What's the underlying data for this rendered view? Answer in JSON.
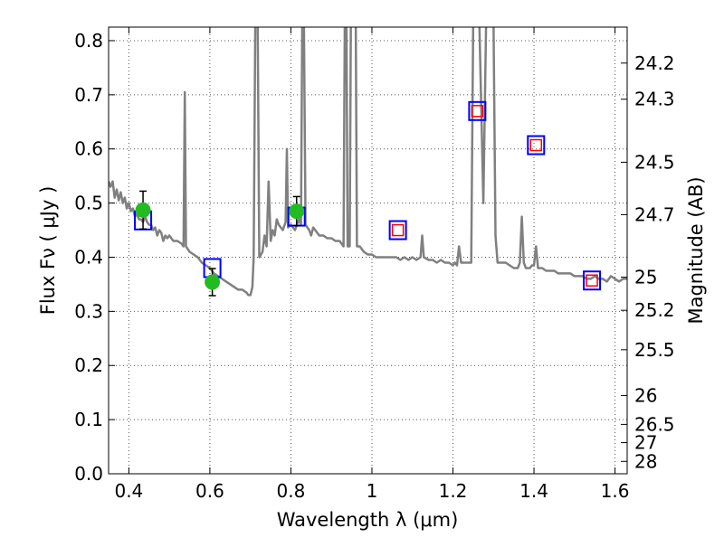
{
  "chart_data": {
    "type": "scatter",
    "xlabel": "Wavelength  λ (μm)",
    "ylabel_left": "Flux  Fν  ( μJy )",
    "ylabel_right": "Magnitude (AB)",
    "xlim": [
      0.35,
      1.63
    ],
    "ylim": [
      0.0,
      0.825
    ],
    "grid": true,
    "x_ticks": [
      {
        "value": 0.4,
        "label": "0.4"
      },
      {
        "value": 0.6,
        "label": "0.6"
      },
      {
        "value": 0.8,
        "label": "0.8"
      },
      {
        "value": 1.0,
        "label": "1"
      },
      {
        "value": 1.2,
        "label": "1.2"
      },
      {
        "value": 1.4,
        "label": "1.4"
      },
      {
        "value": 1.6,
        "label": "1.6"
      }
    ],
    "y_ticks": [
      {
        "value": 0.0,
        "label": "0.0"
      },
      {
        "value": 0.1,
        "label": "0.1"
      },
      {
        "value": 0.2,
        "label": "0.2"
      },
      {
        "value": 0.3,
        "label": "0.3"
      },
      {
        "value": 0.4,
        "label": "0.4"
      },
      {
        "value": 0.5,
        "label": "0.5"
      },
      {
        "value": 0.6,
        "label": "0.6"
      },
      {
        "value": 0.7,
        "label": "0.7"
      },
      {
        "value": 0.8,
        "label": "0.8"
      }
    ],
    "right_ticks": [
      {
        "mag": 24.2,
        "label": "24.2"
      },
      {
        "mag": 24.3,
        "label": "24.3"
      },
      {
        "mag": 24.5,
        "label": "24.5"
      },
      {
        "mag": 24.7,
        "label": "24.7"
      },
      {
        "mag": 25.0,
        "label": "25"
      },
      {
        "mag": 25.2,
        "label": "25.2"
      },
      {
        "mag": 25.5,
        "label": "25.5"
      },
      {
        "mag": 26.0,
        "label": "26"
      },
      {
        "mag": 26.5,
        "label": "26.5"
      },
      {
        "mag": 27.0,
        "label": "27"
      },
      {
        "mag": 28.0,
        "label": "28"
      }
    ],
    "colors": {
      "sed": "#808080",
      "observed": "#22bb22",
      "model_blue": "#0000ff",
      "model_red": "#ff0000",
      "grid": "#555555"
    },
    "series": [
      {
        "kind": "line",
        "points": [
          [
            0.35,
            0.54
          ],
          [
            0.355,
            0.53
          ],
          [
            0.36,
            0.54
          ],
          [
            0.365,
            0.51
          ],
          [
            0.37,
            0.525
          ],
          [
            0.375,
            0.505
          ],
          [
            0.38,
            0.52
          ],
          [
            0.385,
            0.5
          ],
          [
            0.39,
            0.51
          ],
          [
            0.395,
            0.49
          ],
          [
            0.4,
            0.5
          ],
          [
            0.405,
            0.485
          ],
          [
            0.41,
            0.49
          ],
          [
            0.415,
            0.475
          ],
          [
            0.42,
            0.48
          ],
          [
            0.425,
            0.47
          ],
          [
            0.43,
            0.47
          ],
          [
            0.435,
            0.465
          ],
          [
            0.44,
            0.475
          ],
          [
            0.445,
            0.465
          ],
          [
            0.45,
            0.46
          ],
          [
            0.455,
            0.46
          ],
          [
            0.46,
            0.45
          ],
          [
            0.465,
            0.455
          ],
          [
            0.47,
            0.44
          ],
          [
            0.475,
            0.45
          ],
          [
            0.48,
            0.445
          ],
          [
            0.485,
            0.43
          ],
          [
            0.49,
            0.44
          ],
          [
            0.495,
            0.435
          ],
          [
            0.5,
            0.44
          ],
          [
            0.51,
            0.43
          ],
          [
            0.52,
            0.43
          ],
          [
            0.53,
            0.425
          ],
          [
            0.535,
            0.42
          ],
          [
            0.538,
            0.705
          ],
          [
            0.541,
            0.42
          ],
          [
            0.55,
            0.41
          ],
          [
            0.56,
            0.405
          ],
          [
            0.57,
            0.4
          ],
          [
            0.58,
            0.39
          ],
          [
            0.59,
            0.385
          ],
          [
            0.6,
            0.38
          ],
          [
            0.61,
            0.37
          ],
          [
            0.62,
            0.365
          ],
          [
            0.63,
            0.36
          ],
          [
            0.64,
            0.355
          ],
          [
            0.65,
            0.35
          ],
          [
            0.66,
            0.345
          ],
          [
            0.67,
            0.34
          ],
          [
            0.68,
            0.34
          ],
          [
            0.69,
            0.335
          ],
          [
            0.695,
            0.33
          ],
          [
            0.7,
            0.33
          ],
          [
            0.705,
            0.345
          ],
          [
            0.708,
            0.4
          ],
          [
            0.712,
            0.84
          ],
          [
            0.718,
            0.84
          ],
          [
            0.722,
            0.4
          ],
          [
            0.73,
            0.41
          ],
          [
            0.735,
            0.44
          ],
          [
            0.74,
            0.42
          ],
          [
            0.745,
            0.54
          ],
          [
            0.75,
            0.43
          ],
          [
            0.755,
            0.45
          ],
          [
            0.76,
            0.44
          ],
          [
            0.765,
            0.47
          ],
          [
            0.77,
            0.46
          ],
          [
            0.78,
            0.45
          ],
          [
            0.787,
            0.465
          ],
          [
            0.79,
            0.6
          ],
          [
            0.793,
            0.455
          ],
          [
            0.8,
            0.46
          ],
          [
            0.81,
            0.45
          ],
          [
            0.82,
            0.47
          ],
          [
            0.825,
            0.46
          ],
          [
            0.828,
            0.84
          ],
          [
            0.832,
            0.84
          ],
          [
            0.836,
            0.46
          ],
          [
            0.845,
            0.45
          ],
          [
            0.85,
            0.44
          ],
          [
            0.855,
            0.455
          ],
          [
            0.86,
            0.45
          ],
          [
            0.87,
            0.44
          ],
          [
            0.88,
            0.44
          ],
          [
            0.89,
            0.435
          ],
          [
            0.9,
            0.435
          ],
          [
            0.91,
            0.43
          ],
          [
            0.92,
            0.43
          ],
          [
            0.93,
            0.42
          ],
          [
            0.933,
            0.84
          ],
          [
            0.937,
            0.84
          ],
          [
            0.94,
            0.42
          ],
          [
            0.945,
            0.42
          ],
          [
            0.948,
            0.84
          ],
          [
            0.96,
            0.84
          ],
          [
            0.963,
            0.42
          ],
          [
            0.97,
            0.42
          ],
          [
            0.975,
            0.415
          ],
          [
            0.98,
            0.41
          ],
          [
            0.99,
            0.405
          ],
          [
            1.0,
            0.405
          ],
          [
            1.01,
            0.4
          ],
          [
            1.02,
            0.4
          ],
          [
            1.03,
            0.4
          ],
          [
            1.04,
            0.4
          ],
          [
            1.05,
            0.4
          ],
          [
            1.06,
            0.4
          ],
          [
            1.07,
            0.395
          ],
          [
            1.08,
            0.4
          ],
          [
            1.09,
            0.395
          ],
          [
            1.1,
            0.4
          ],
          [
            1.11,
            0.395
          ],
          [
            1.12,
            0.4
          ],
          [
            1.124,
            0.44
          ],
          [
            1.128,
            0.4
          ],
          [
            1.14,
            0.395
          ],
          [
            1.15,
            0.395
          ],
          [
            1.16,
            0.39
          ],
          [
            1.17,
            0.395
          ],
          [
            1.18,
            0.39
          ],
          [
            1.19,
            0.39
          ],
          [
            1.2,
            0.385
          ],
          [
            1.205,
            0.39
          ],
          [
            1.21,
            0.385
          ],
          [
            1.215,
            0.42
          ],
          [
            1.22,
            0.39
          ],
          [
            1.225,
            0.39
          ],
          [
            1.23,
            0.39
          ],
          [
            1.235,
            0.39
          ],
          [
            1.24,
            0.39
          ],
          [
            1.245,
            0.39
          ],
          [
            1.25,
            0.84
          ],
          [
            1.265,
            0.84
          ],
          [
            1.275,
            0.5
          ],
          [
            1.282,
            0.84
          ],
          [
            1.3,
            0.84
          ],
          [
            1.305,
            0.44
          ],
          [
            1.31,
            0.39
          ],
          [
            1.32,
            0.39
          ],
          [
            1.33,
            0.39
          ],
          [
            1.34,
            0.385
          ],
          [
            1.35,
            0.38
          ],
          [
            1.36,
            0.38
          ],
          [
            1.365,
            0.39
          ],
          [
            1.37,
            0.475
          ],
          [
            1.375,
            0.39
          ],
          [
            1.38,
            0.38
          ],
          [
            1.39,
            0.38
          ],
          [
            1.395,
            0.385
          ],
          [
            1.4,
            0.385
          ],
          [
            1.405,
            0.42
          ],
          [
            1.41,
            0.38
          ],
          [
            1.42,
            0.38
          ],
          [
            1.43,
            0.375
          ],
          [
            1.44,
            0.375
          ],
          [
            1.45,
            0.375
          ],
          [
            1.46,
            0.37
          ],
          [
            1.47,
            0.37
          ],
          [
            1.48,
            0.37
          ],
          [
            1.49,
            0.37
          ],
          [
            1.5,
            0.365
          ],
          [
            1.51,
            0.365
          ],
          [
            1.52,
            0.365
          ],
          [
            1.53,
            0.36
          ],
          [
            1.54,
            0.36
          ],
          [
            1.55,
            0.365
          ],
          [
            1.56,
            0.36
          ],
          [
            1.57,
            0.36
          ],
          [
            1.58,
            0.355
          ],
          [
            1.59,
            0.365
          ],
          [
            1.6,
            0.36
          ],
          [
            1.61,
            0.355
          ],
          [
            1.62,
            0.36
          ],
          [
            1.63,
            0.36
          ]
        ]
      },
      {
        "kind": "observed",
        "points": [
          {
            "x": 0.435,
            "y": 0.487,
            "err": 0.035
          },
          {
            "x": 0.606,
            "y": 0.354,
            "err": 0.025
          },
          {
            "x": 0.814,
            "y": 0.485,
            "err": 0.027
          }
        ]
      },
      {
        "kind": "model",
        "points": [
          {
            "x": 0.435,
            "y": 0.468,
            "inner": false
          },
          {
            "x": 0.606,
            "y": 0.38,
            "inner": false
          },
          {
            "x": 0.814,
            "y": 0.475,
            "inner": false
          },
          {
            "x": 1.064,
            "y": 0.45,
            "inner": true
          },
          {
            "x": 1.26,
            "y": 0.67,
            "inner": true
          },
          {
            "x": 1.405,
            "y": 0.607,
            "inner": true
          },
          {
            "x": 1.543,
            "y": 0.357,
            "inner": true
          }
        ]
      }
    ]
  }
}
